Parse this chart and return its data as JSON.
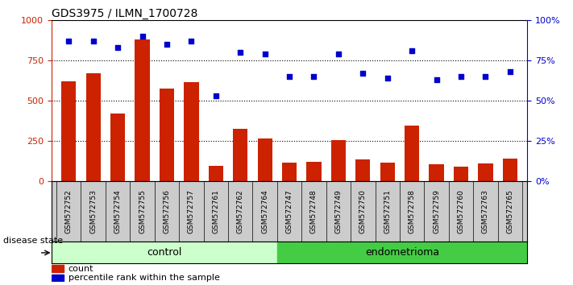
{
  "title": "GDS3975 / ILMN_1700728",
  "categories": [
    "GSM572752",
    "GSM572753",
    "GSM572754",
    "GSM572755",
    "GSM572756",
    "GSM572757",
    "GSM572761",
    "GSM572762",
    "GSM572764",
    "GSM572747",
    "GSM572748",
    "GSM572749",
    "GSM572750",
    "GSM572751",
    "GSM572758",
    "GSM572759",
    "GSM572760",
    "GSM572763",
    "GSM572765"
  ],
  "counts": [
    620,
    670,
    420,
    880,
    575,
    615,
    95,
    325,
    265,
    115,
    120,
    255,
    135,
    115,
    345,
    105,
    90,
    110,
    140
  ],
  "percentiles": [
    87,
    87,
    83,
    90,
    85,
    87,
    53,
    80,
    79,
    65,
    65,
    79,
    67,
    64,
    81,
    63,
    65,
    65,
    68
  ],
  "control_count": 9,
  "endometrioma_count": 10,
  "ylim_left": [
    0,
    1000
  ],
  "ylim_right": [
    0,
    100
  ],
  "yticks_left": [
    0,
    250,
    500,
    750,
    1000
  ],
  "yticks_right": [
    0,
    25,
    50,
    75,
    100
  ],
  "bar_color": "#cc2200",
  "dot_color": "#0000cc",
  "control_color": "#ccffcc",
  "endometrioma_color": "#44cc44",
  "xtick_bg_color": "#cccccc",
  "label_count": "count",
  "label_percentile": "percentile rank within the sample",
  "label_disease": "disease state",
  "label_control": "control",
  "label_endometrioma": "endometrioma"
}
